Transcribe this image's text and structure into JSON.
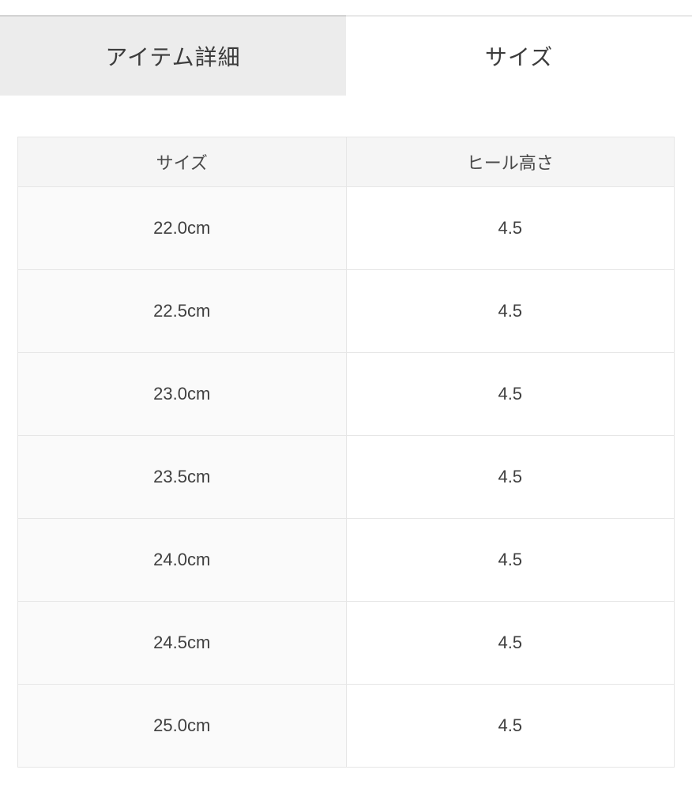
{
  "tabs": {
    "item_details": {
      "label": "アイテム詳細",
      "active": false
    },
    "size": {
      "label": "サイズ",
      "active": true
    }
  },
  "size_table": {
    "columns": {
      "size": "サイズ",
      "heel_height": "ヒール高さ"
    },
    "rows": [
      {
        "size": "22.0cm",
        "heel_height": "4.5"
      },
      {
        "size": "22.5cm",
        "heel_height": "4.5"
      },
      {
        "size": "23.0cm",
        "heel_height": "4.5"
      },
      {
        "size": "23.5cm",
        "heel_height": "4.5"
      },
      {
        "size": "24.0cm",
        "heel_height": "4.5"
      },
      {
        "size": "24.5cm",
        "heel_height": "4.5"
      },
      {
        "size": "25.0cm",
        "heel_height": "4.5"
      }
    ]
  },
  "colors": {
    "inactive_tab_bg": "#ececec",
    "tab_top_border": "#d2d2d2",
    "table_border": "#e6e6e6",
    "header_bg": "#f5f5f5",
    "size_cell_bg": "#fafafa",
    "text": "#3f3f3f"
  }
}
